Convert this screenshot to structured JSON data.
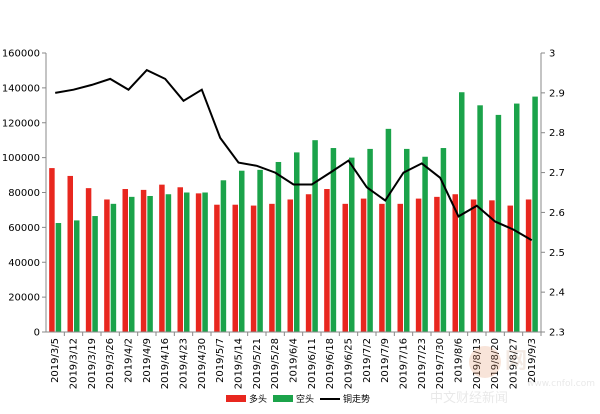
{
  "chart_data": {
    "type": "bar",
    "title": "",
    "xlabel": "",
    "ylabel": "",
    "categories": [
      "2019/3/5",
      "2019/3/12",
      "2019/3/19",
      "2019/3/26",
      "2019/4/2",
      "2019/4/9",
      "2019/4/16",
      "2019/4/23",
      "2019/4/30",
      "2019/5/7",
      "2019/5/14",
      "2019/5/21",
      "2019/5/28",
      "2019/6/4",
      "2019/6/11",
      "2019/6/18",
      "2019/6/25",
      "2019/7/2",
      "2019/7/9",
      "2019/7/16",
      "2019/7/23",
      "2019/7/30",
      "2019/8/6",
      "2019/8/13",
      "2019/8/20",
      "2019/8/27",
      "2019/9/3"
    ],
    "series": [
      {
        "name": "多头",
        "axis": "left",
        "values": [
          94000,
          89500,
          82500,
          76000,
          82000,
          81500,
          84500,
          83000,
          79500,
          73000,
          73000,
          72500,
          73500,
          76000,
          79000,
          82000,
          73500,
          76500,
          73500,
          73500,
          76500,
          77500,
          79000,
          76000,
          75500,
          72500,
          76000
        ]
      },
      {
        "name": "空头",
        "axis": "left",
        "values": [
          62500,
          64000,
          66500,
          73500,
          77500,
          78000,
          79000,
          80000,
          80000,
          87000,
          92500,
          93000,
          97500,
          103000,
          110000,
          105500,
          100000,
          105000,
          116500,
          105000,
          100500,
          105500,
          137500,
          130000,
          124500,
          131000,
          135000
        ]
      },
      {
        "name": "铜走势",
        "axis": "right",
        "type": "line",
        "values": [
          2.9,
          2.908,
          2.92,
          2.935,
          2.908,
          2.957,
          2.935,
          2.88,
          2.908,
          2.787,
          2.725,
          2.717,
          2.7,
          2.67,
          2.67,
          2.7,
          2.73,
          2.663,
          2.63,
          2.7,
          2.723,
          2.687,
          2.59,
          2.617,
          2.577,
          2.557,
          2.53
        ]
      }
    ],
    "ylim": [
      0,
      160000
    ],
    "y_ticks": [
      "0",
      "20000",
      "40000",
      "60000",
      "80000",
      "100000",
      "120000",
      "140000",
      "160000"
    ],
    "y2lim": [
      2.3,
      3.0
    ],
    "y2_ticks": [
      "2.3",
      "2.4",
      "2.5",
      "2.6",
      "2.7",
      "2.8",
      "2.9",
      "3"
    ],
    "legend_position": "bottom",
    "grid": false,
    "colors": {
      "long": "#e8271f",
      "short": "#1ba34a",
      "line": "#000000",
      "axis": "#888888"
    }
  },
  "watermark": {
    "chinese": "中文财经新闻",
    "cn_text": "网",
    "domain": "www.cnfol.com"
  }
}
